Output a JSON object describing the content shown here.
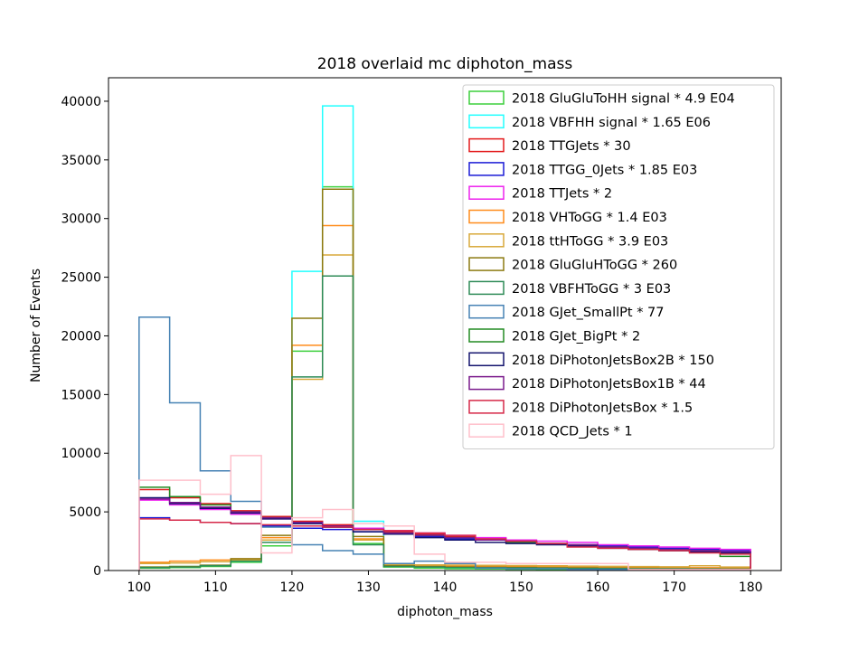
{
  "chart_data": {
    "type": "histogram",
    "title": "2018 overlaid mc diphoton_mass",
    "xlabel": "diphoton_mass",
    "ylabel": "Number of Events",
    "xlim": [
      96,
      184
    ],
    "ylim": [
      0,
      42000
    ],
    "x_ticks": [
      100,
      110,
      120,
      130,
      140,
      150,
      160,
      170,
      180
    ],
    "y_ticks": [
      0,
      5000,
      10000,
      15000,
      20000,
      25000,
      30000,
      35000,
      40000
    ],
    "x_tick_labels": [
      "100",
      "110",
      "120",
      "130",
      "140",
      "150",
      "160",
      "170",
      "180"
    ],
    "y_tick_labels": [
      "0",
      "5000",
      "10000",
      "15000",
      "20000",
      "25000",
      "30000",
      "35000",
      "40000"
    ],
    "bin_edges": [
      100,
      104,
      108,
      112,
      116,
      120,
      124,
      128,
      132,
      136,
      140,
      144,
      148,
      152,
      156,
      160,
      164,
      168,
      172,
      176,
      180
    ],
    "grid": false,
    "legend_position": "top-right",
    "series": [
      {
        "name": "2018 GluGluToHH signal * 4.9 E04",
        "color": "#3ccf3c",
        "values": [
          200,
          250,
          350,
          700,
          2100,
          18700,
          32700,
          2300,
          300,
          200,
          150,
          130,
          110,
          100,
          90,
          80,
          70,
          60,
          50,
          50
        ]
      },
      {
        "name": "2018 VBFHH signal * 1.65 E06",
        "color": "#22ffff",
        "values": [
          300,
          350,
          450,
          800,
          2600,
          25500,
          39600,
          4200,
          400,
          300,
          250,
          220,
          200,
          180,
          160,
          140,
          120,
          110,
          100,
          90
        ]
      },
      {
        "name": "2018 TTGJets * 30",
        "color": "#e31a1c",
        "values": [
          6900,
          6200,
          5700,
          5100,
          4600,
          4200,
          3900,
          3600,
          3300,
          3100,
          2900,
          2700,
          2500,
          2300,
          2200,
          2000,
          1900,
          1800,
          1700,
          1500
        ]
      },
      {
        "name": "2018 TTGG_0Jets * 1.85 E03",
        "color": "#1a1ad6",
        "values": [
          4500,
          4300,
          4100,
          4000,
          3800,
          3600,
          3500,
          3300,
          3100,
          2900,
          2700,
          2600,
          2400,
          2300,
          2200,
          2100,
          2000,
          1900,
          1800,
          1700
        ]
      },
      {
        "name": "2018 TTJets * 2",
        "color": "#ee22ee",
        "values": [
          6000,
          5600,
          5200,
          4800,
          4400,
          4100,
          3800,
          3600,
          3400,
          3200,
          3000,
          2800,
          2600,
          2500,
          2400,
          2200,
          2100,
          2000,
          1900,
          1800
        ]
      },
      {
        "name": "2018 VHToGG * 1.4 E03",
        "color": "#ff8c1a",
        "values": [
          700,
          800,
          900,
          1000,
          2800,
          19200,
          29400,
          2700,
          500,
          450,
          400,
          380,
          360,
          340,
          320,
          300,
          280,
          260,
          240,
          220
        ]
      },
      {
        "name": "2018 ttHToGG * 3.9 E03",
        "color": "#d8a83a",
        "values": [
          600,
          650,
          750,
          900,
          2600,
          16300,
          26900,
          2600,
          500,
          480,
          460,
          440,
          420,
          400,
          380,
          360,
          340,
          320,
          400,
          300
        ]
      },
      {
        "name": "2018 GluGluHToGG * 260",
        "color": "#8c7a10",
        "values": [
          300,
          350,
          450,
          1000,
          3000,
          21500,
          32500,
          2900,
          400,
          350,
          300,
          280,
          260,
          240,
          220,
          200,
          180,
          170,
          160,
          150
        ]
      },
      {
        "name": "2018 VBFHToGG * 3 E03",
        "color": "#2e8b57",
        "values": [
          250,
          300,
          400,
          800,
          2400,
          16500,
          25100,
          2200,
          350,
          300,
          260,
          240,
          220,
          200,
          180,
          160,
          150,
          140,
          130,
          120
        ]
      },
      {
        "name": "2018 GJet_SmallPt * 77",
        "color": "#4682b4",
        "values": [
          21600,
          14300,
          8500,
          5900,
          3700,
          2200,
          1700,
          1400,
          600,
          800,
          600,
          200,
          150,
          150,
          100,
          100,
          100,
          100,
          100,
          100
        ]
      },
      {
        "name": "2018 GJet_BigPt * 2",
        "color": "#228b22",
        "values": [
          7100,
          6300,
          5600,
          5000,
          4500,
          4100,
          3700,
          3500,
          3200,
          3000,
          2800,
          2600,
          2400,
          2300,
          2100,
          2000,
          1800,
          1700,
          1600,
          1200
        ]
      },
      {
        "name": "2018 DiPhotonJetsBox2B * 150",
        "color": "#14146e",
        "values": [
          6200,
          5700,
          5300,
          4900,
          4400,
          4000,
          3700,
          3300,
          3100,
          2800,
          2600,
          2400,
          2300,
          2200,
          2100,
          1900,
          1800,
          1700,
          1600,
          1500
        ]
      },
      {
        "name": "2018 DiPhotonJetsBox1B * 44",
        "color": "#7a1a8c",
        "values": [
          6100,
          5800,
          5400,
          5000,
          4500,
          4100,
          3800,
          3500,
          3200,
          3000,
          2800,
          2600,
          2500,
          2300,
          2200,
          2000,
          1900,
          1800,
          1700,
          1600
        ]
      },
      {
        "name": "2018 DiPhotonJetsBox * 1.5",
        "color": "#d62848",
        "values": [
          4400,
          4300,
          4100,
          4000,
          3900,
          3800,
          3700,
          3500,
          3400,
          3200,
          3000,
          2700,
          2500,
          2300,
          2000,
          1900,
          1800,
          1700,
          1500,
          1400
        ]
      },
      {
        "name": "2018 QCD_Jets * 1",
        "color": "#ffc0cb",
        "values": [
          7700,
          7700,
          6500,
          9800,
          1500,
          4500,
          5200,
          4000,
          3800,
          1400,
          700,
          700,
          600,
          600,
          600,
          600,
          100,
          100,
          100,
          100
        ]
      }
    ]
  }
}
